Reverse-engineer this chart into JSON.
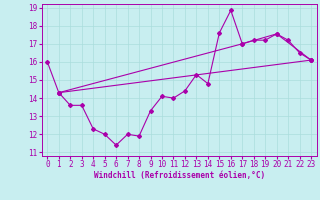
{
  "xlabel": "Windchill (Refroidissement éolien,°C)",
  "background_color": "#c8eef0",
  "line_color": "#aa00aa",
  "ylim": [
    11,
    19
  ],
  "xlim": [
    0,
    23
  ],
  "yticks": [
    11,
    12,
    13,
    14,
    15,
    16,
    17,
    18,
    19
  ],
  "xticks": [
    0,
    1,
    2,
    3,
    4,
    5,
    6,
    7,
    8,
    9,
    10,
    11,
    12,
    13,
    14,
    15,
    16,
    17,
    18,
    19,
    20,
    21,
    22,
    23
  ],
  "series1_x": [
    0,
    1,
    2,
    3,
    4,
    5,
    6,
    7,
    8,
    9,
    10,
    11,
    12,
    13,
    14,
    15,
    16,
    17,
    18,
    19,
    20,
    21,
    22,
    23
  ],
  "series1_y": [
    16.0,
    14.3,
    13.6,
    13.6,
    12.3,
    12.0,
    11.4,
    12.0,
    11.9,
    13.3,
    14.1,
    14.0,
    14.4,
    15.3,
    14.8,
    17.6,
    18.85,
    17.0,
    17.2,
    17.2,
    17.55,
    17.2,
    16.5,
    16.1
  ],
  "series2_x": [
    1,
    23
  ],
  "series2_y": [
    14.3,
    16.1
  ],
  "series3_x": [
    1,
    17,
    20,
    23
  ],
  "series3_y": [
    14.3,
    17.0,
    17.55,
    16.1
  ],
  "grid_color": "#aadddd",
  "tick_fontsize": 5.5,
  "xlabel_fontsize": 5.5
}
